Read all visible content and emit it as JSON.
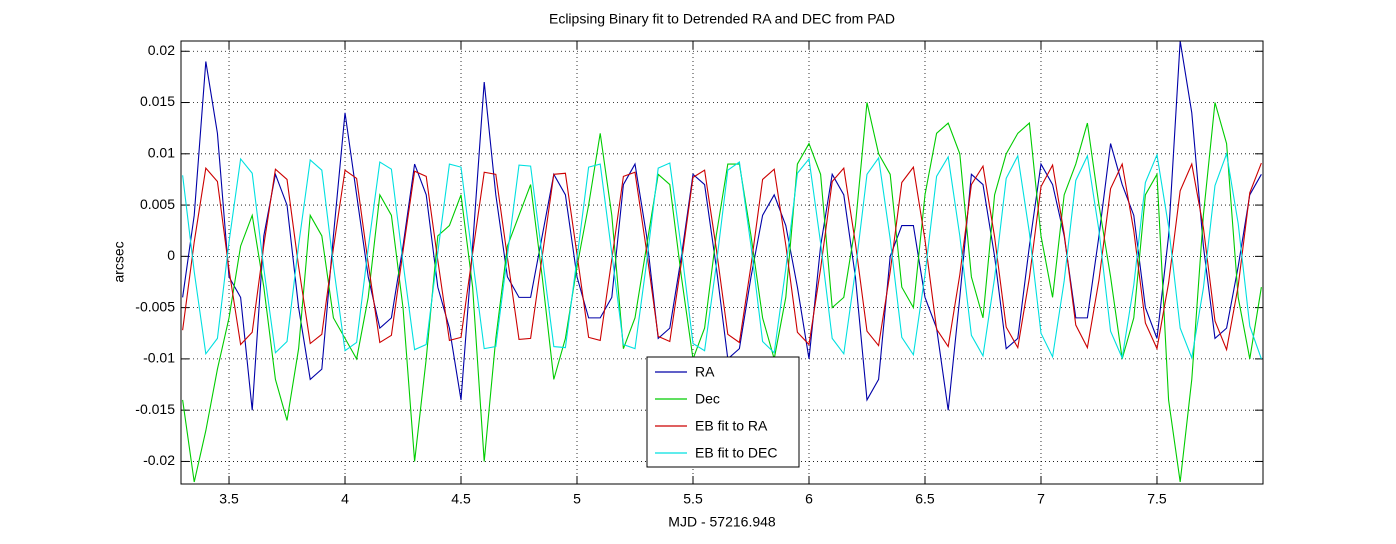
{
  "chart_data": {
    "type": "line",
    "title": "Eclipsing Binary fit to Detrended RA and DEC from PAD",
    "xlabel": "MJD - 57216.948",
    "ylabel": "arcsec",
    "xlim": [
      3.293,
      7.957
    ],
    "ylim": [
      -0.0222,
      0.021
    ],
    "xticks": [
      3.5,
      4,
      4.5,
      5,
      5.5,
      6,
      6.5,
      7,
      7.5
    ],
    "yticks": [
      -0.02,
      -0.015,
      -0.01,
      -0.005,
      0,
      0.005,
      0.01,
      0.015,
      0.02
    ],
    "grid": true,
    "legend": "lower center",
    "x": [
      3.3,
      3.35,
      3.4,
      3.45,
      3.5,
      3.55,
      3.6,
      3.65,
      3.7,
      3.75,
      3.8,
      3.85,
      3.9,
      3.95,
      4,
      4.05,
      4.1,
      4.15,
      4.2,
      4.25,
      4.3,
      4.35,
      4.4,
      4.45,
      4.5,
      4.55,
      4.6,
      4.65,
      4.7,
      4.75,
      4.8,
      4.85,
      4.9,
      4.95,
      5,
      5.05,
      5.1,
      5.15,
      5.2,
      5.25,
      5.3,
      5.35,
      5.4,
      5.45,
      5.5,
      5.55,
      5.6,
      5.65,
      5.7,
      5.75,
      5.8,
      5.85,
      5.9,
      5.95,
      6,
      6.05,
      6.1,
      6.15,
      6.2,
      6.25,
      6.3,
      6.35,
      6.4,
      6.45,
      6.5,
      6.55,
      6.6,
      6.65,
      6.7,
      6.75,
      6.8,
      6.85,
      6.9,
      6.95,
      7,
      7.05,
      7.1,
      7.15,
      7.2,
      7.25,
      7.3,
      7.35,
      7.4,
      7.45,
      7.5,
      7.55,
      7.6,
      7.65,
      7.7,
      7.75,
      7.8,
      7.85,
      7.9,
      7.95
    ],
    "series": [
      {
        "name": "RA",
        "color": "#0000a8",
        "values": [
          -0.004,
          0.004,
          0.019,
          0.012,
          -0.002,
          -0.004,
          -0.015,
          0.002,
          0.008,
          0.005,
          -0.005,
          -0.012,
          -0.011,
          0.002,
          0.014,
          0.006,
          -0.002,
          -0.007,
          -0.006,
          0.001,
          0.009,
          0.006,
          -0.003,
          -0.007,
          -0.014,
          0.001,
          0.017,
          0.006,
          -0.002,
          -0.004,
          -0.004,
          0.002,
          0.008,
          0.006,
          -0.002,
          -0.006,
          -0.006,
          -0.004,
          0.007,
          0.009,
          0.002,
          -0.008,
          -0.007,
          0.0,
          0.008,
          0.007,
          -0.001,
          -0.01,
          -0.009,
          -0.002,
          0.004,
          0.006,
          0.003,
          -0.003,
          -0.01,
          0.001,
          0.008,
          0.006,
          -0.002,
          -0.014,
          -0.012,
          0.0,
          0.003,
          0.003,
          -0.004,
          -0.007,
          -0.015,
          -0.004,
          0.008,
          0.007,
          0.0,
          -0.009,
          -0.008,
          0.001,
          0.009,
          0.007,
          0.002,
          -0.006,
          -0.006,
          0.002,
          0.011,
          0.007,
          0.004,
          -0.005,
          -0.008,
          0.002,
          0.021,
          0.014,
          0.001,
          -0.008,
          -0.007,
          -0.001,
          0.006,
          0.008
        ]
      },
      {
        "name": "Dec",
        "color": "#00cc00",
        "values": [
          -0.014,
          -0.022,
          -0.017,
          -0.011,
          -0.006,
          0.001,
          0.004,
          -0.003,
          -0.012,
          -0.016,
          -0.009,
          0.004,
          0.002,
          -0.006,
          -0.008,
          -0.01,
          -0.004,
          0.006,
          0.004,
          -0.005,
          -0.02,
          -0.01,
          0.002,
          0.003,
          0.006,
          -0.003,
          -0.02,
          -0.008,
          0.001,
          0.004,
          0.007,
          -0.002,
          -0.012,
          -0.008,
          -0.001,
          0.005,
          0.012,
          0.004,
          -0.009,
          -0.006,
          0.001,
          0.008,
          0.007,
          -0.002,
          -0.01,
          -0.007,
          0.002,
          0.009,
          0.009,
          0.002,
          -0.006,
          -0.01,
          -0.004,
          0.009,
          0.011,
          0.008,
          -0.005,
          -0.004,
          0.003,
          0.015,
          0.01,
          0.008,
          -0.003,
          -0.005,
          0.006,
          0.012,
          0.013,
          0.01,
          -0.002,
          -0.006,
          0.006,
          0.01,
          0.012,
          0.013,
          0.002,
          -0.004,
          0.006,
          0.009,
          0.013,
          0.005,
          -0.002,
          -0.01,
          -0.006,
          0.006,
          0.008,
          -0.014,
          -0.022,
          -0.012,
          0.004,
          0.015,
          0.011,
          -0.004,
          -0.01,
          -0.003
        ]
      },
      {
        "name": "EB fit to RA",
        "color": "#cc0000",
        "values": [
          -0.0072,
          0.0014,
          0.0086,
          0.0073,
          -0.0013,
          -0.0086,
          -0.0074,
          0.0011,
          0.0085,
          0.0075,
          -0.001,
          -0.0085,
          -0.0076,
          0.0008,
          0.0084,
          0.0076,
          -0.0007,
          -0.0084,
          -0.0077,
          0.0005,
          0.0083,
          0.0078,
          -0.0004,
          -0.0082,
          -0.0079,
          0.0003,
          0.0082,
          0.008,
          -0.0001,
          -0.0081,
          -0.008,
          0.0,
          0.008,
          0.0081,
          0.0002,
          -0.0079,
          -0.0082,
          -0.0003,
          0.0078,
          0.0082,
          0.0005,
          -0.0078,
          -0.0083,
          -0.0006,
          0.0077,
          0.0084,
          0.0008,
          -0.0076,
          -0.0084,
          -0.0009,
          0.0075,
          0.0085,
          0.0011,
          -0.0074,
          -0.0086,
          -0.0012,
          0.0073,
          0.0086,
          0.0013,
          -0.0073,
          -0.0087,
          -0.0015,
          0.0072,
          0.0087,
          0.0016,
          -0.0071,
          -0.0088,
          -0.0018,
          0.007,
          0.0088,
          0.0019,
          -0.0069,
          -0.0089,
          -0.0021,
          0.0068,
          0.0089,
          0.0022,
          -0.0067,
          -0.0089,
          -0.0023,
          0.0066,
          0.009,
          0.0025,
          -0.0065,
          -0.009,
          -0.0026,
          0.0064,
          0.009,
          0.0028,
          -0.0063,
          -0.0091,
          -0.0029,
          0.0062,
          0.0091
        ]
      },
      {
        "name": "EB fit to DEC",
        "color": "#00e0e0",
        "values": [
          0.0079,
          -0.0015,
          -0.0095,
          -0.008,
          0.0014,
          0.0095,
          0.0081,
          -0.0012,
          -0.0094,
          -0.0083,
          0.0011,
          0.0094,
          0.0084,
          -0.0009,
          -0.0092,
          -0.0084,
          0.0008,
          0.0092,
          0.0085,
          -0.0006,
          -0.0091,
          -0.0086,
          0.0004,
          0.009,
          0.0087,
          -0.0003,
          -0.009,
          -0.0088,
          0.0001,
          0.0089,
          0.0088,
          0.0,
          -0.0088,
          -0.0089,
          -0.0002,
          0.0087,
          0.009,
          0.0003,
          -0.0086,
          -0.009,
          -0.0006,
          0.0086,
          0.0091,
          0.0007,
          -0.0085,
          -0.0092,
          -0.0009,
          0.0084,
          0.0092,
          0.001,
          -0.0083,
          -0.0094,
          -0.0012,
          0.0081,
          0.0095,
          0.0013,
          -0.008,
          -0.0095,
          -0.0014,
          0.008,
          0.0096,
          0.0017,
          -0.0079,
          -0.0096,
          -0.0018,
          0.0078,
          0.0097,
          0.002,
          -0.0077,
          -0.0097,
          -0.0021,
          0.0076,
          0.0098,
          0.0023,
          -0.0075,
          -0.0098,
          -0.0024,
          0.0074,
          0.0098,
          0.0025,
          -0.0073,
          -0.0099,
          -0.0028,
          0.0072,
          0.0099,
          0.0029,
          -0.007,
          -0.0099,
          -0.0031,
          0.0069,
          0.01,
          0.0032,
          -0.0068,
          -0.01
        ]
      }
    ]
  }
}
